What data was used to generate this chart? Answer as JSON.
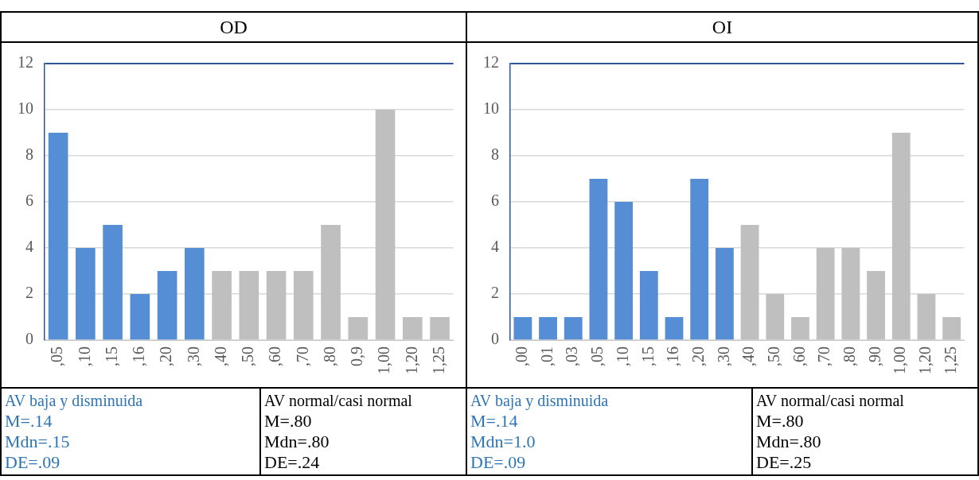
{
  "chart_data": [
    {
      "type": "bar",
      "title": "OD",
      "categories": [
        ",05",
        ",10",
        ",15",
        ",16",
        ",20",
        ",30",
        ",40",
        ",50",
        ",60",
        ",70",
        ",80",
        "0,9",
        "1,00",
        "1,20",
        "1,25"
      ],
      "values": [
        9,
        4,
        5,
        2,
        3,
        4,
        3,
        3,
        3,
        3,
        5,
        1,
        10,
        1,
        1
      ],
      "colors": [
        "#558ed5",
        "#558ed5",
        "#558ed5",
        "#558ed5",
        "#558ed5",
        "#558ed5",
        "#bfbfbf",
        "#bfbfbf",
        "#bfbfbf",
        "#bfbfbf",
        "#bfbfbf",
        "#bfbfbf",
        "#bfbfbf",
        "#bfbfbf",
        "#bfbfbf"
      ],
      "ylim": [
        0,
        12
      ],
      "yticks": [
        0,
        2,
        4,
        6,
        8,
        10,
        12
      ],
      "grid": "y",
      "legend": false,
      "annotations": [
        "AV baja y disminuida",
        "M=.14",
        "Mdn=.15",
        "DE=.09",
        "AV normal/casi normal",
        "M=.80",
        "Mdn=.80",
        "DE=.24"
      ]
    },
    {
      "type": "bar",
      "title": "OI",
      "categories": [
        ",00",
        ",01",
        ",03",
        ",05",
        ",10",
        ",15",
        ",16",
        ",20",
        ",30",
        ",40",
        ",50",
        ",60",
        ",70",
        ",80",
        ",90",
        "1,00",
        "1,20",
        "1,25"
      ],
      "values": [
        1,
        1,
        1,
        7,
        6,
        3,
        1,
        7,
        4,
        5,
        2,
        1,
        4,
        4,
        3,
        9,
        2,
        1
      ],
      "colors": [
        "#558ed5",
        "#558ed5",
        "#558ed5",
        "#558ed5",
        "#558ed5",
        "#558ed5",
        "#558ed5",
        "#558ed5",
        "#558ed5",
        "#bfbfbf",
        "#bfbfbf",
        "#bfbfbf",
        "#bfbfbf",
        "#bfbfbf",
        "#bfbfbf",
        "#bfbfbf",
        "#bfbfbf",
        "#bfbfbf"
      ],
      "ylim": [
        0,
        12
      ],
      "yticks": [
        0,
        2,
        4,
        6,
        8,
        10,
        12
      ],
      "grid": "y",
      "legend": false,
      "annotations": [
        "AV baja y disminuida",
        "M=.14",
        "Mdn=1.0",
        "DE=.09",
        "AV normal/casi normal",
        "M=.80",
        "Mdn=.80",
        "DE=.25"
      ]
    }
  ]
}
